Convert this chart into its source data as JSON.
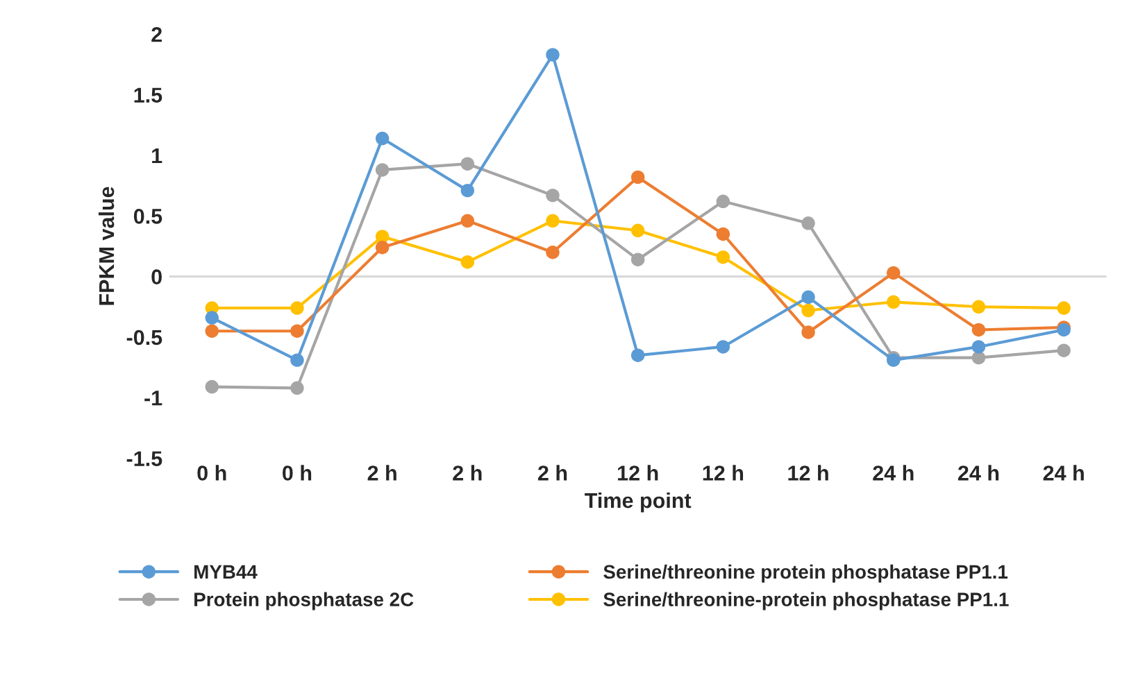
{
  "chart_data": {
    "type": "line",
    "xlabel": "Time point",
    "ylabel": "FPKM value",
    "categories": [
      "0 h",
      "0 h",
      "2 h",
      "2 h",
      "2 h",
      "12 h",
      "12 h",
      "12 h",
      "24 h",
      "24 h",
      "24 h"
    ],
    "series": [
      {
        "name": "MYB44",
        "color": "#5b9bd5",
        "values": [
          -0.34,
          -0.69,
          1.14,
          0.71,
          1.83,
          -0.65,
          -0.58,
          -0.17,
          -0.69,
          -0.58,
          -0.44
        ]
      },
      {
        "name": "Serine/threonine protein phosphatase PP1.1",
        "color": "#ed7d31",
        "values": [
          -0.45,
          -0.45,
          0.24,
          0.46,
          0.2,
          0.82,
          0.35,
          -0.46,
          0.03,
          -0.44,
          -0.42
        ]
      },
      {
        "name": "Protein phosphatase 2C",
        "color": "#a5a5a5",
        "values": [
          -0.91,
          -0.92,
          0.88,
          0.93,
          0.67,
          0.14,
          0.62,
          0.44,
          -0.67,
          -0.67,
          -0.61
        ]
      },
      {
        "name": "Serine/threonine-protein phosphatase PP1.1",
        "color": "#ffc000",
        "values": [
          -0.26,
          -0.26,
          0.33,
          0.12,
          0.46,
          0.38,
          0.16,
          -0.28,
          -0.21,
          -0.25,
          -0.26
        ]
      }
    ],
    "ylim": [
      -1.5,
      2
    ],
    "yticks": [
      -1.5,
      -1,
      -0.5,
      0,
      0.5,
      1,
      1.5,
      2
    ],
    "ref_lines": [
      {
        "axis": "y",
        "value": 0,
        "color": "#d9d9d9"
      }
    ],
    "grid": false,
    "legend": "bottom",
    "marker": "circle",
    "line_style": "solid"
  }
}
